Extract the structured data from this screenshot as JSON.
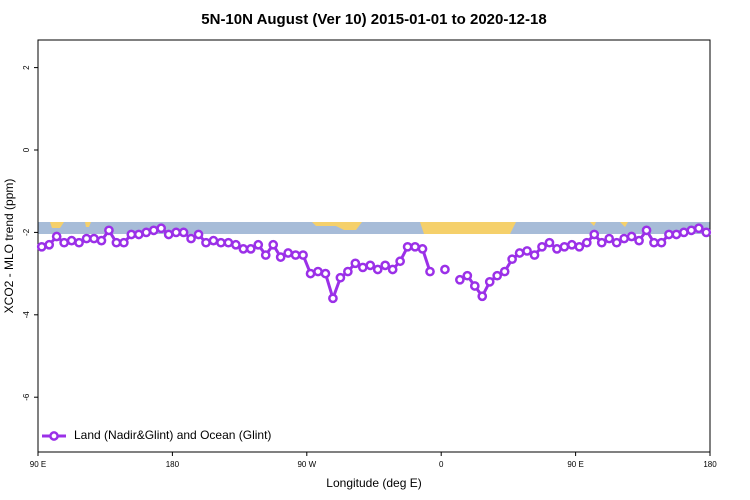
{
  "chart_data": {
    "type": "line",
    "title": "5N-10N August (Ver 10)   2015-01-01 to 2020-12-18",
    "xlabel": "Longitude (deg E)",
    "ylabel": "XCO2 - MLO trend (ppm)",
    "xlim": [
      90,
      540
    ],
    "ylim": [
      -7.33,
      2.67
    ],
    "xticks": [
      {
        "value": 90,
        "label": "90 E"
      },
      180,
      {
        "value": 270,
        "label": "90 W"
      },
      {
        "value": 360,
        "label": "0"
      },
      {
        "value": 450,
        "label": "90 E"
      },
      {
        "value": 540,
        "label": "180"
      }
    ],
    "yticks": [
      2,
      0,
      -2,
      -4,
      -6
    ],
    "legend": "bottom-left",
    "x": [
      92.5,
      97.5,
      102.5,
      107.5,
      112.5,
      117.5,
      122.5,
      127.5,
      132.5,
      137.5,
      142.5,
      147.5,
      152.5,
      157.5,
      162.5,
      167.5,
      172.5,
      177.5,
      182.5,
      187.5,
      192.5,
      197.5,
      202.5,
      207.5,
      212.5,
      217.5,
      222.5,
      227.5,
      232.5,
      237.5,
      242.5,
      247.5,
      252.5,
      257.5,
      262.5,
      267.5,
      272.5,
      277.5,
      282.5,
      287.5,
      292.5,
      297.5,
      302.5,
      307.5,
      312.5,
      317.5,
      322.5,
      327.5,
      332.5,
      337.5,
      342.5,
      347.5,
      352.5,
      357.5,
      362.5,
      367.5,
      372.5,
      377.5,
      382.5,
      387.5,
      392.5,
      397.5,
      402.5,
      407.5,
      412.5,
      417.5,
      422.5,
      427.5,
      432.5,
      437.5,
      442.5,
      447.5,
      452.5,
      457.5,
      462.5,
      467.5,
      472.5,
      477.5,
      482.5,
      487.5,
      492.5,
      497.5,
      502.5,
      507.5,
      512.5,
      517.5,
      522.5,
      527.5,
      532.5,
      537.5
    ],
    "series": [
      {
        "name": "Land (Nadir&Glint) and Ocean (Glint)",
        "color": "#9b30e8",
        "values": [
          -2.35,
          -2.3,
          -2.1,
          -2.25,
          -2.2,
          -2.25,
          -2.15,
          -2.15,
          -2.2,
          -1.95,
          -2.25,
          -2.25,
          -2.05,
          -2.05,
          -2.0,
          -1.95,
          -1.9,
          -2.05,
          -2.0,
          -2.0,
          -2.15,
          -2.05,
          -2.25,
          -2.2,
          -2.25,
          -2.25,
          -2.3,
          -2.4,
          -2.4,
          -2.3,
          -2.55,
          -2.3,
          -2.6,
          -2.5,
          -2.55,
          -2.55,
          -3.0,
          -2.95,
          -3.0,
          -3.6,
          -3.1,
          -2.95,
          -2.75,
          -2.85,
          -2.8,
          -2.9,
          -2.8,
          -2.9,
          -2.7,
          -2.35,
          -2.35,
          -2.4,
          -2.95,
          null,
          -2.9,
          null,
          -3.15,
          -3.05,
          -3.3,
          -3.55,
          -3.2,
          -3.05,
          -2.95,
          -2.65,
          -2.5,
          -2.45,
          -2.55,
          -2.35,
          -2.25,
          -2.4,
          -2.35,
          -2.3,
          -2.35,
          -2.25,
          -2.05,
          -2.25,
          -2.15,
          -2.25,
          -2.15,
          -2.1,
          -2.2,
          -1.95,
          -2.25,
          -2.25,
          -2.05,
          -2.05,
          -2.0,
          -1.95,
          -1.9,
          -2.0
        ]
      }
    ]
  }
}
